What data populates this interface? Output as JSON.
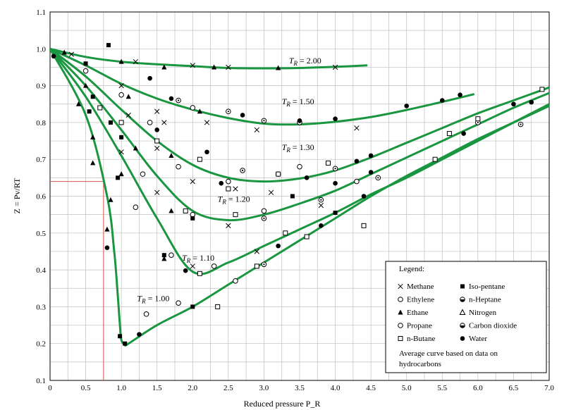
{
  "chart_data": {
    "type": "line",
    "xlabel": "Reduced pressure P_R",
    "ylabel": "Z = Pv/RT",
    "xlim": [
      0,
      7.0
    ],
    "ylim": [
      0.1,
      1.1
    ],
    "x_ticks": [
      "0",
      "0.5",
      "1.0",
      "1.5",
      "2.0",
      "2.5",
      "3.0",
      "3.5",
      "4.0",
      "4.5",
      "5.0",
      "5.5",
      "6.0",
      "6.5",
      "7.0"
    ],
    "y_ticks": [
      "0.1",
      "0.2",
      "0.3",
      "0.4",
      "0.5",
      "0.6",
      "0.7",
      "0.8",
      "0.9",
      "1.0",
      "1.1"
    ],
    "grid": true,
    "series": [
      {
        "name": "T_R = 2.00",
        "label": "2.00",
        "label_at": [
          3.35,
          0.96
        ],
        "x": [
          0,
          0.5,
          1.0,
          1.5,
          2.0,
          2.5,
          3.0,
          3.5,
          4.0,
          4.45
        ],
        "values": [
          1.0,
          0.978,
          0.965,
          0.958,
          0.953,
          0.948,
          0.947,
          0.948,
          0.951,
          0.955
        ]
      },
      {
        "name": "T_R = 1.50",
        "label": "1.50",
        "label_at": [
          3.25,
          0.85
        ],
        "x": [
          0,
          0.5,
          1.0,
          1.5,
          2.0,
          2.5,
          3.0,
          3.5,
          4.0,
          4.5,
          5.0,
          5.5,
          5.95
        ],
        "values": [
          1.0,
          0.955,
          0.905,
          0.865,
          0.835,
          0.812,
          0.797,
          0.795,
          0.802,
          0.815,
          0.834,
          0.856,
          0.877
        ]
      },
      {
        "name": "T_R = 1.30",
        "label": "1.30",
        "label_at": [
          3.25,
          0.725
        ],
        "x": [
          0,
          0.5,
          1.0,
          1.5,
          2.0,
          2.5,
          3.0,
          3.5,
          4.0,
          4.5,
          5.0,
          5.5,
          6.0,
          6.5,
          7.0
        ],
        "values": [
          1.0,
          0.925,
          0.835,
          0.75,
          0.685,
          0.65,
          0.64,
          0.648,
          0.67,
          0.705,
          0.745,
          0.785,
          0.825,
          0.86,
          0.895
        ]
      },
      {
        "name": "T_R = 1.20",
        "label": "1.20",
        "label_at": [
          2.35,
          0.585
        ],
        "x": [
          0,
          0.5,
          1.0,
          1.5,
          2.0,
          2.5,
          3.0,
          3.5,
          4.0,
          4.5,
          5.0,
          5.5,
          6.0,
          6.5,
          7.0
        ],
        "values": [
          1.0,
          0.9,
          0.78,
          0.655,
          0.56,
          0.535,
          0.55,
          0.58,
          0.615,
          0.66,
          0.705,
          0.75,
          0.795,
          0.84,
          0.88
        ]
      },
      {
        "name": "T_R = 1.10",
        "label": "1.10",
        "label_at": [
          1.85,
          0.425
        ],
        "x": [
          0,
          0.5,
          1.0,
          1.5,
          2.0,
          2.5,
          3.0,
          3.5,
          4.0,
          4.5,
          5.0,
          5.5,
          6.0,
          6.5,
          7.0
        ],
        "values": [
          1.0,
          0.87,
          0.71,
          0.54,
          0.395,
          0.42,
          0.465,
          0.51,
          0.555,
          0.605,
          0.65,
          0.7,
          0.75,
          0.8,
          0.85
        ]
      },
      {
        "name": "T_R = 1.00",
        "label": "1.00",
        "label_at": [
          1.22,
          0.315
        ],
        "x": [
          0,
          0.5,
          0.8,
          0.9,
          0.95,
          0.98,
          1.0,
          1.05,
          1.1,
          1.5,
          2.0,
          2.5,
          3.0,
          3.5,
          4.0,
          4.5,
          5.0,
          5.5,
          6.0,
          6.5,
          7.0
        ],
        "values": [
          1.0,
          0.82,
          0.6,
          0.45,
          0.33,
          0.25,
          0.21,
          0.197,
          0.2,
          0.25,
          0.3,
          0.36,
          0.42,
          0.48,
          0.54,
          0.6,
          0.655,
          0.705,
          0.755,
          0.8,
          0.845
        ]
      }
    ],
    "reference_point": {
      "x": 0.75,
      "y": 0.64
    },
    "data_markers": [
      {
        "marker": "x",
        "points": [
          [
            0.3,
            0.985
          ],
          [
            1.2,
            0.965
          ],
          [
            2.0,
            0.955
          ],
          [
            2.5,
            0.95
          ],
          [
            4.0,
            0.95
          ],
          [
            1.0,
            0.9
          ],
          [
            1.5,
            0.83
          ],
          [
            2.2,
            0.8
          ],
          [
            2.9,
            0.78
          ],
          [
            4.3,
            0.785
          ],
          [
            1.5,
            0.73
          ],
          [
            2.0,
            0.64
          ],
          [
            2.6,
            0.62
          ],
          [
            3.1,
            0.61
          ],
          [
            1.0,
            0.72
          ],
          [
            1.5,
            0.61
          ],
          [
            2.5,
            0.52
          ],
          [
            2.0,
            0.41
          ],
          [
            2.9,
            0.45
          ],
          [
            3.8,
            0.575
          ],
          [
            1.6,
            0.8
          ],
          [
            1.1,
            0.82
          ]
        ]
      },
      {
        "marker": "circle-open",
        "points": [
          [
            0.5,
            0.94
          ],
          [
            1.0,
            0.875
          ],
          [
            1.4,
            0.8
          ],
          [
            2.0,
            0.84
          ],
          [
            1.8,
            0.68
          ],
          [
            2.5,
            0.64
          ],
          [
            3.5,
            0.68
          ],
          [
            1.3,
            0.66
          ],
          [
            2.0,
            0.55
          ],
          [
            3.0,
            0.56
          ],
          [
            1.2,
            0.57
          ],
          [
            1.7,
            0.44
          ],
          [
            2.3,
            0.41
          ],
          [
            2.6,
            0.37
          ],
          [
            1.35,
            0.28
          ],
          [
            1.8,
            0.31
          ],
          [
            4.3,
            0.64
          ]
        ]
      },
      {
        "marker": "triangle-filled",
        "points": [
          [
            0.2,
            0.99
          ],
          [
            1.0,
            0.965
          ],
          [
            1.6,
            0.95
          ],
          [
            2.3,
            0.95
          ],
          [
            3.2,
            0.948
          ],
          [
            0.5,
            0.9
          ],
          [
            1.1,
            0.87
          ],
          [
            2.1,
            0.83
          ],
          [
            0.4,
            0.85
          ],
          [
            1.2,
            0.73
          ],
          [
            1.7,
            0.71
          ],
          [
            0.6,
            0.76
          ],
          [
            1.0,
            0.66
          ],
          [
            1.7,
            0.56
          ],
          [
            0.6,
            0.69
          ],
          [
            0.85,
            0.59
          ],
          [
            1.6,
            0.43
          ],
          [
            0.8,
            0.51
          ]
        ]
      },
      {
        "marker": "circle-dot",
        "points": [
          [
            1.8,
            0.86
          ],
          [
            2.5,
            0.83
          ],
          [
            3.0,
            0.805
          ],
          [
            3.5,
            0.8
          ],
          [
            2.7,
            0.67
          ],
          [
            3.2,
            0.66
          ],
          [
            4.0,
            0.675
          ],
          [
            3.0,
            0.54
          ],
          [
            3.8,
            0.59
          ],
          [
            4.6,
            0.65
          ],
          [
            3.0,
            0.415
          ],
          [
            6.0,
            0.8
          ],
          [
            6.6,
            0.795
          ]
        ]
      },
      {
        "marker": "square-open",
        "points": [
          [
            0.7,
            0.84
          ],
          [
            1.0,
            0.8
          ],
          [
            1.5,
            0.75
          ],
          [
            2.1,
            0.7
          ],
          [
            2.5,
            0.62
          ],
          [
            3.2,
            0.66
          ],
          [
            3.9,
            0.69
          ],
          [
            1.9,
            0.56
          ],
          [
            2.6,
            0.55
          ],
          [
            3.3,
            0.5
          ],
          [
            4.4,
            0.52
          ],
          [
            2.1,
            0.39
          ],
          [
            2.9,
            0.41
          ],
          [
            3.6,
            0.49
          ],
          [
            5.6,
            0.77
          ],
          [
            6.0,
            0.81
          ],
          [
            6.9,
            0.89
          ],
          [
            5.4,
            0.7
          ],
          [
            2.35,
            0.3
          ]
        ]
      },
      {
        "marker": "square-filled",
        "points": [
          [
            0.82,
            1.01
          ],
          [
            0.5,
            0.96
          ],
          [
            0.6,
            0.87
          ],
          [
            0.85,
            0.8
          ],
          [
            1.0,
            0.76
          ],
          [
            0.95,
            0.65
          ],
          [
            1.6,
            0.44
          ],
          [
            2.0,
            0.54
          ],
          [
            3.4,
            0.6
          ],
          [
            4.0,
            0.555
          ],
          [
            0.55,
            0.83
          ],
          [
            0.98,
            0.22
          ],
          [
            1.05,
            0.2
          ],
          [
            2.0,
            0.3
          ]
        ]
      },
      {
        "marker": "circle-filled",
        "points": [
          [
            0.05,
            0.98
          ],
          [
            1.4,
            0.92
          ],
          [
            1.7,
            0.865
          ],
          [
            2.7,
            0.82
          ],
          [
            3.5,
            0.805
          ],
          [
            4.0,
            0.81
          ],
          [
            5.0,
            0.845
          ],
          [
            5.5,
            0.86
          ],
          [
            5.75,
            0.875
          ],
          [
            1.5,
            0.78
          ],
          [
            2.2,
            0.72
          ],
          [
            3.6,
            0.65
          ],
          [
            4.3,
            0.695
          ],
          [
            4.5,
            0.71
          ],
          [
            2.4,
            0.635
          ],
          [
            4.0,
            0.635
          ],
          [
            4.5,
            0.665
          ],
          [
            5.8,
            0.77
          ],
          [
            6.5,
            0.85
          ],
          [
            6.75,
            0.855
          ],
          [
            1.9,
            0.398
          ],
          [
            3.2,
            0.465
          ],
          [
            3.8,
            0.52
          ],
          [
            4.4,
            0.6
          ],
          [
            1.25,
            0.225
          ],
          [
            0.8,
            0.46
          ]
        ]
      }
    ],
    "legend": {
      "title": "Legend:",
      "placement": "bottom-right",
      "entries": [
        {
          "marker": "x",
          "label": "Methane"
        },
        {
          "marker": "square-filled",
          "label": "Iso-pentane"
        },
        {
          "marker": "circle-open",
          "label": "Ethylene"
        },
        {
          "marker": "circle-half",
          "label": "n-Heptane"
        },
        {
          "marker": "triangle-filled",
          "label": "Ethane"
        },
        {
          "marker": "triangle-open",
          "label": "Nitrogen"
        },
        {
          "marker": "circle-open",
          "label": "Propane"
        },
        {
          "marker": "circle-half",
          "label": "Carbon dioxide"
        },
        {
          "marker": "square-open",
          "label": "n-Butane"
        },
        {
          "marker": "circle-filled",
          "label": "Water"
        }
      ],
      "note": "Average curve based on data on hydrocarbons"
    },
    "colors": {
      "curve": "#1a9641",
      "reference_line": "#d9534f",
      "grid": "#bfbfbf",
      "frame": "#000000"
    }
  }
}
